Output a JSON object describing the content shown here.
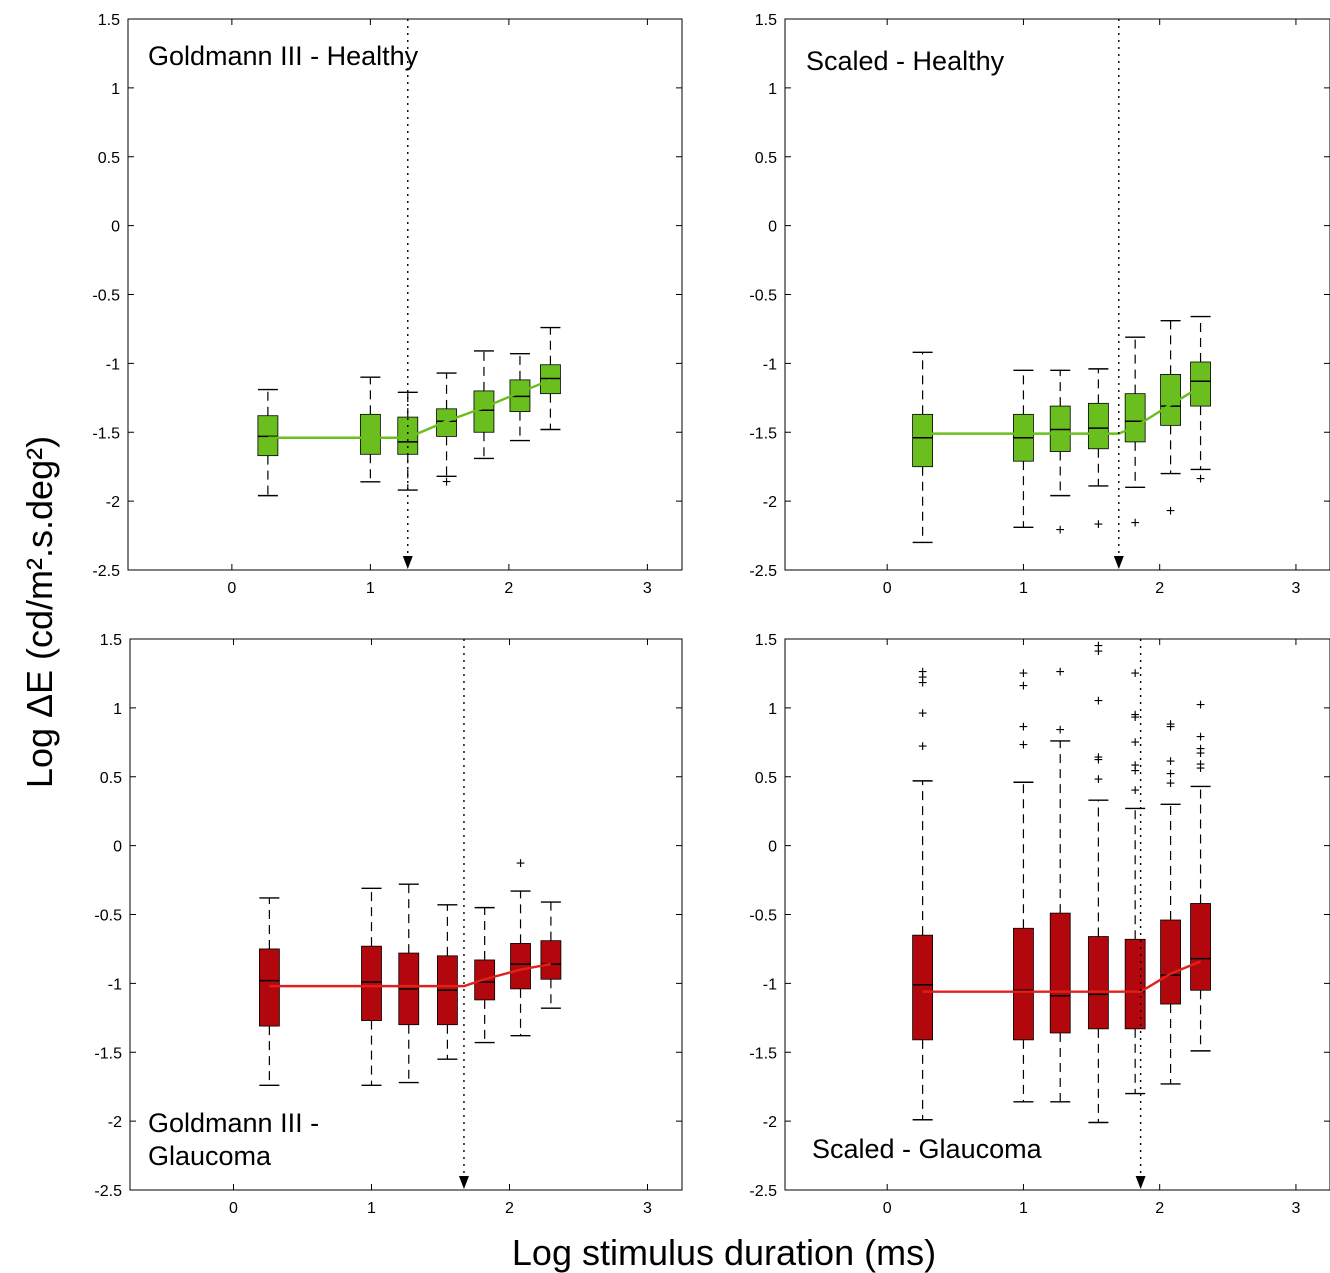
{
  "figure": {
    "ylabel": "Log ΔE (cd/m².s.deg²)",
    "xlabel": "Log stimulus duration (ms)"
  },
  "colors": {
    "healthy": "#6abf1f",
    "glaucoma": "#b3070e",
    "healthy_line": "#6abf1f",
    "glaucoma_line": "#e0201b"
  },
  "chart_data": [
    {
      "type": "box",
      "title": [
        "Goldmann III - Healthy"
      ],
      "group": "healthy",
      "xlim": [
        -0.75,
        3.25
      ],
      "ylim": [
        -2.5,
        1.5
      ],
      "xticks": [
        0,
        1,
        2,
        3
      ],
      "yticks": [
        -2.5,
        -2,
        -1.5,
        -1,
        -0.5,
        0,
        0.5,
        1,
        1.5
      ],
      "cutoff_x": 1.27,
      "boxes": [
        {
          "x": 0.26,
          "q1": -1.67,
          "median": -1.53,
          "q3": -1.38,
          "lo": -1.96,
          "hi": -1.19,
          "outliers": []
        },
        {
          "x": 1.0,
          "q1": -1.66,
          "median": -1.54,
          "q3": -1.37,
          "lo": -1.86,
          "hi": -1.1,
          "outliers": []
        },
        {
          "x": 1.27,
          "q1": -1.66,
          "median": -1.57,
          "q3": -1.39,
          "lo": -1.92,
          "hi": -1.21,
          "outliers": []
        },
        {
          "x": 1.55,
          "q1": -1.53,
          "median": -1.42,
          "q3": -1.33,
          "lo": -1.82,
          "hi": -1.07,
          "outliers": [
            -1.86
          ]
        },
        {
          "x": 1.82,
          "q1": -1.5,
          "median": -1.34,
          "q3": -1.2,
          "lo": -1.69,
          "hi": -0.91,
          "outliers": []
        },
        {
          "x": 2.08,
          "q1": -1.35,
          "median": -1.24,
          "q3": -1.12,
          "lo": -1.56,
          "hi": -0.93,
          "outliers": []
        },
        {
          "x": 2.3,
          "q1": -1.22,
          "median": -1.11,
          "q3": -1.01,
          "lo": -1.48,
          "hi": -0.74,
          "outliers": []
        }
      ],
      "fit": [
        [
          0.26,
          -1.54
        ],
        [
          1.27,
          -1.54
        ],
        [
          1.55,
          -1.42
        ],
        [
          1.82,
          -1.32
        ],
        [
          2.08,
          -1.21
        ],
        [
          2.3,
          -1.12
        ]
      ]
    },
    {
      "type": "box",
      "title": [
        "Scaled - Healthy"
      ],
      "group": "healthy",
      "xlim": [
        -0.75,
        3.25
      ],
      "ylim": [
        -2.5,
        1.5
      ],
      "xticks": [
        0,
        1,
        2,
        3
      ],
      "yticks": [
        -2.5,
        -2,
        -1.5,
        -1,
        -0.5,
        0,
        0.5,
        1,
        1.5
      ],
      "cutoff_x": 1.7,
      "boxes": [
        {
          "x": 0.26,
          "q1": -1.75,
          "median": -1.54,
          "q3": -1.37,
          "lo": -2.3,
          "hi": -0.92,
          "outliers": []
        },
        {
          "x": 1.0,
          "q1": -1.71,
          "median": -1.54,
          "q3": -1.37,
          "lo": -2.19,
          "hi": -1.05,
          "outliers": []
        },
        {
          "x": 1.27,
          "q1": -1.64,
          "median": -1.48,
          "q3": -1.31,
          "lo": -1.96,
          "hi": -1.05,
          "outliers": [
            -2.21
          ]
        },
        {
          "x": 1.55,
          "q1": -1.62,
          "median": -1.47,
          "q3": -1.29,
          "lo": -1.89,
          "hi": -1.04,
          "outliers": [
            -2.17
          ]
        },
        {
          "x": 1.82,
          "q1": -1.57,
          "median": -1.42,
          "q3": -1.22,
          "lo": -1.9,
          "hi": -0.81,
          "outliers": [
            -2.16
          ]
        },
        {
          "x": 2.08,
          "q1": -1.45,
          "median": -1.31,
          "q3": -1.08,
          "lo": -1.8,
          "hi": -0.69,
          "outliers": [
            -2.07
          ]
        },
        {
          "x": 2.3,
          "q1": -1.31,
          "median": -1.13,
          "q3": -0.99,
          "lo": -1.77,
          "hi": -0.66,
          "outliers": [
            -1.84
          ]
        }
      ],
      "fit": [
        [
          0.26,
          -1.51
        ],
        [
          1.7,
          -1.51
        ],
        [
          1.82,
          -1.46
        ],
        [
          2.08,
          -1.3
        ],
        [
          2.3,
          -1.17
        ]
      ]
    },
    {
      "type": "box",
      "title": [
        "Goldmann III -",
        "Glaucoma"
      ],
      "group": "glaucoma",
      "xlim": [
        -0.75,
        3.25
      ],
      "ylim": [
        -2.5,
        1.5
      ],
      "xticks": [
        0,
        1,
        2,
        3
      ],
      "yticks": [
        -2.5,
        -2,
        -1.5,
        -1,
        -0.5,
        0,
        0.5,
        1,
        1.5
      ],
      "cutoff_x": 1.67,
      "boxes": [
        {
          "x": 0.26,
          "q1": -1.31,
          "median": -0.98,
          "q3": -0.75,
          "lo": -1.74,
          "hi": -0.38,
          "outliers": []
        },
        {
          "x": 1.0,
          "q1": -1.27,
          "median": -0.99,
          "q3": -0.73,
          "lo": -1.74,
          "hi": -0.31,
          "outliers": []
        },
        {
          "x": 1.27,
          "q1": -1.3,
          "median": -1.04,
          "q3": -0.78,
          "lo": -1.72,
          "hi": -0.28,
          "outliers": []
        },
        {
          "x": 1.55,
          "q1": -1.3,
          "median": -1.05,
          "q3": -0.8,
          "lo": -1.55,
          "hi": -0.43,
          "outliers": []
        },
        {
          "x": 1.82,
          "q1": -1.12,
          "median": -0.99,
          "q3": -0.83,
          "lo": -1.43,
          "hi": -0.45,
          "outliers": []
        },
        {
          "x": 2.08,
          "q1": -1.04,
          "median": -0.86,
          "q3": -0.71,
          "lo": -1.38,
          "hi": -0.33,
          "outliers": [
            -0.13
          ]
        },
        {
          "x": 2.3,
          "q1": -0.97,
          "median": -0.86,
          "q3": -0.69,
          "lo": -1.18,
          "hi": -0.41,
          "outliers": []
        }
      ],
      "fit": [
        [
          0.26,
          -1.02
        ],
        [
          1.67,
          -1.02
        ],
        [
          1.82,
          -0.97
        ],
        [
          2.08,
          -0.9
        ],
        [
          2.3,
          -0.86
        ]
      ]
    },
    {
      "type": "box",
      "title": [
        "Scaled - Glaucoma"
      ],
      "group": "glaucoma",
      "xlim": [
        -0.75,
        3.25
      ],
      "ylim": [
        -2.5,
        1.5
      ],
      "xticks": [
        0,
        1,
        2,
        3
      ],
      "yticks": [
        -2.5,
        -2,
        -1.5,
        -1,
        -0.5,
        0,
        0.5,
        1,
        1.5
      ],
      "cutoff_x": 1.86,
      "boxes": [
        {
          "x": 0.26,
          "q1": -1.41,
          "median": -1.01,
          "q3": -0.65,
          "lo": -1.99,
          "hi": 0.47,
          "outliers": [
            0.72,
            0.96,
            1.18,
            1.22,
            1.26
          ]
        },
        {
          "x": 1.0,
          "q1": -1.41,
          "median": -1.05,
          "q3": -0.6,
          "lo": -1.86,
          "hi": 0.46,
          "outliers": [
            0.73,
            0.86,
            1.16,
            1.25
          ]
        },
        {
          "x": 1.27,
          "q1": -1.36,
          "median": -1.09,
          "q3": -0.49,
          "lo": -1.86,
          "hi": 0.76,
          "outliers": [
            0.84,
            1.26
          ]
        },
        {
          "x": 1.55,
          "q1": -1.33,
          "median": -1.08,
          "q3": -0.66,
          "lo": -2.01,
          "hi": 0.33,
          "outliers": [
            0.48,
            0.62,
            0.64,
            1.05,
            1.41,
            1.45
          ]
        },
        {
          "x": 1.82,
          "q1": -1.33,
          "median": -1.06,
          "q3": -0.68,
          "lo": -1.8,
          "hi": 0.27,
          "outliers": [
            0.4,
            0.54,
            0.58,
            0.75,
            0.93,
            0.95,
            1.25
          ]
        },
        {
          "x": 2.08,
          "q1": -1.15,
          "median": -0.94,
          "q3": -0.54,
          "lo": -1.73,
          "hi": 0.3,
          "outliers": [
            0.45,
            0.52,
            0.61,
            0.86,
            0.88
          ]
        },
        {
          "x": 2.3,
          "q1": -1.05,
          "median": -0.82,
          "q3": -0.42,
          "lo": -1.49,
          "hi": 0.43,
          "outliers": [
            0.56,
            0.59,
            0.67,
            0.7,
            0.79,
            1.02
          ]
        }
      ],
      "fit": [
        [
          0.26,
          -1.06
        ],
        [
          1.86,
          -1.06
        ],
        [
          2.08,
          -0.93
        ],
        [
          2.3,
          -0.84
        ]
      ]
    }
  ]
}
